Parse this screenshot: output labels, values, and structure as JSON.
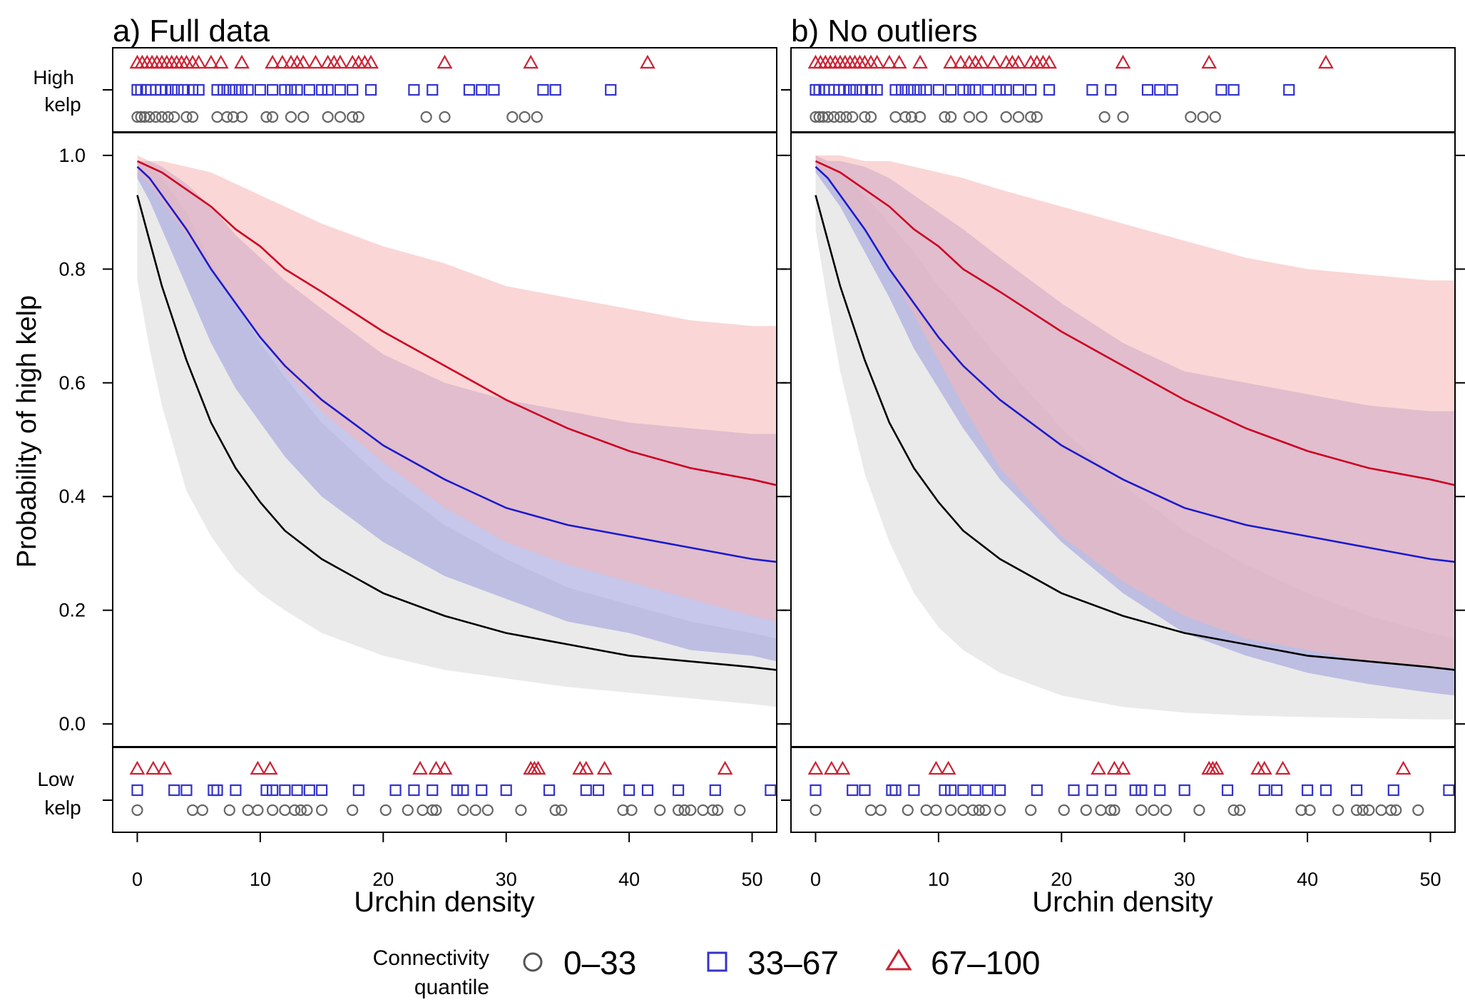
{
  "chart_data": [
    {
      "type": "line",
      "title": "a) Full data",
      "xlabel": "Urchin density",
      "ylabel": "Probability of high kelp",
      "xlim": [
        -2,
        52
      ],
      "ylim": [
        -0.04,
        1.04
      ],
      "x_ticks": [
        "0",
        "10",
        "20",
        "30",
        "40",
        "50"
      ],
      "y_ticks": [
        "0.0",
        "0.2",
        "0.4",
        "0.6",
        "0.8",
        "1.0"
      ],
      "rug_top_label": [
        "High",
        "kelp"
      ],
      "rug_bottom_label": [
        "Low",
        "kelp"
      ],
      "series": [
        {
          "name": "0–33",
          "color": "#000000",
          "fill": "#d9d9d9",
          "marker": "circle",
          "x": [
            0,
            1,
            2,
            4,
            6,
            8,
            10,
            12,
            15,
            20,
            25,
            30,
            35,
            40,
            45,
            50,
            52
          ],
          "y": [
            0.93,
            0.85,
            0.77,
            0.64,
            0.53,
            0.45,
            0.39,
            0.34,
            0.29,
            0.23,
            0.19,
            0.16,
            0.14,
            0.12,
            0.11,
            0.1,
            0.095
          ],
          "lower": [
            0.78,
            0.66,
            0.56,
            0.41,
            0.33,
            0.27,
            0.23,
            0.2,
            0.16,
            0.12,
            0.095,
            0.08,
            0.065,
            0.055,
            0.045,
            0.035,
            0.03
          ],
          "upper": [
            0.99,
            0.98,
            0.96,
            0.9,
            0.81,
            0.74,
            0.67,
            0.61,
            0.53,
            0.43,
            0.35,
            0.29,
            0.24,
            0.21,
            0.18,
            0.16,
            0.15
          ],
          "rug_high": [
            0,
            0.3,
            0.6,
            1,
            1.5,
            2,
            2.5,
            3,
            4,
            4.5,
            6.5,
            7.3,
            7.8,
            8.5,
            10.5,
            11,
            12.5,
            13.5,
            15.5,
            16.5,
            17.5,
            18,
            23.5,
            25,
            30.5,
            31.5,
            32.5
          ],
          "rug_low": [
            0,
            4.5,
            5.3,
            7.5,
            9,
            9.8,
            11,
            12,
            12.8,
            13.3,
            13.8,
            15,
            17.5,
            20.2,
            22,
            23.2,
            24,
            24.3,
            26.5,
            27.5,
            28.5,
            31.2,
            34,
            34.5,
            39.5,
            40.2,
            42.5,
            44,
            44.5,
            45,
            46,
            46.8,
            47.2,
            49
          ]
        },
        {
          "name": "33–67",
          "color": "#1a1acc",
          "fill": "#9999dd",
          "marker": "square",
          "x": [
            0,
            1,
            2,
            4,
            6,
            8,
            10,
            12,
            15,
            20,
            25,
            30,
            35,
            40,
            45,
            50,
            52
          ],
          "y": [
            0.98,
            0.96,
            0.93,
            0.87,
            0.8,
            0.74,
            0.68,
            0.63,
            0.57,
            0.49,
            0.43,
            0.38,
            0.35,
            0.33,
            0.31,
            0.29,
            0.285
          ],
          "lower": [
            0.96,
            0.92,
            0.87,
            0.77,
            0.67,
            0.59,
            0.53,
            0.47,
            0.4,
            0.32,
            0.26,
            0.22,
            0.18,
            0.16,
            0.13,
            0.12,
            0.11
          ],
          "upper": [
            0.99,
            0.99,
            0.98,
            0.95,
            0.91,
            0.86,
            0.82,
            0.78,
            0.73,
            0.65,
            0.6,
            0.57,
            0.55,
            0.53,
            0.52,
            0.51,
            0.51
          ],
          "rug_high": [
            0,
            0.3,
            0.7,
            1.1,
            1.5,
            1.9,
            2.3,
            2.8,
            3.3,
            3.8,
            4.5,
            5,
            6.5,
            7,
            7.5,
            8,
            8.5,
            9,
            10,
            11,
            12,
            12.5,
            13,
            14,
            15,
            15.5,
            16.5,
            17.5,
            19,
            22.5,
            24,
            27,
            28,
            29,
            33,
            34,
            38.5
          ],
          "rug_low": [
            0,
            3,
            4,
            6.2,
            6.5,
            8,
            10.5,
            11,
            12,
            13,
            14,
            15,
            18,
            21,
            22.5,
            24,
            26,
            26.5,
            28,
            30,
            33.5,
            36.5,
            37.5,
            40,
            41.5,
            44,
            47,
            51.5
          ]
        },
        {
          "name": "67–100",
          "color": "#cc0022",
          "fill": "#f5b5b5",
          "marker": "triangle",
          "x": [
            0,
            1,
            2,
            4,
            6,
            8,
            10,
            12,
            15,
            20,
            25,
            30,
            35,
            40,
            45,
            50,
            52
          ],
          "y": [
            0.99,
            0.98,
            0.97,
            0.94,
            0.91,
            0.87,
            0.84,
            0.8,
            0.76,
            0.69,
            0.63,
            0.57,
            0.52,
            0.48,
            0.45,
            0.43,
            0.42
          ],
          "lower": [
            0.97,
            0.95,
            0.92,
            0.86,
            0.8,
            0.74,
            0.68,
            0.62,
            0.55,
            0.46,
            0.38,
            0.32,
            0.28,
            0.25,
            0.22,
            0.19,
            0.18
          ],
          "upper": [
            1.0,
            0.99,
            0.99,
            0.98,
            0.97,
            0.95,
            0.93,
            0.91,
            0.88,
            0.84,
            0.81,
            0.77,
            0.75,
            0.73,
            0.71,
            0.7,
            0.7
          ],
          "rug_high": [
            0,
            0.4,
            0.8,
            1.2,
            1.6,
            2,
            2.4,
            2.8,
            3.2,
            3.6,
            4,
            4.5,
            5,
            6,
            6.8,
            8.5,
            11,
            11.8,
            12.5,
            13,
            13.5,
            14.5,
            15.5,
            16,
            16.5,
            17.5,
            18,
            18.5,
            19,
            25,
            32,
            41.5
          ],
          "rug_low": [
            0,
            1.3,
            2.2,
            9.8,
            10.8,
            23,
            24.3,
            25,
            32,
            32.3,
            32.6,
            36,
            36.5,
            38,
            47.8
          ]
        }
      ]
    },
    {
      "type": "line",
      "title": "b) No outliers",
      "xlabel": "Urchin density",
      "xlim": [
        -2,
        52
      ],
      "ylim": [
        -0.04,
        1.04
      ],
      "x_ticks": [
        "0",
        "10",
        "20",
        "30",
        "40",
        "50"
      ],
      "series": [
        {
          "name": "0–33",
          "color": "#000000",
          "fill": "#d9d9d9",
          "marker": "circle",
          "x": [
            0,
            1,
            2,
            4,
            6,
            8,
            10,
            12,
            15,
            20,
            25,
            30,
            35,
            40,
            45,
            50,
            52
          ],
          "y": [
            0.93,
            0.85,
            0.77,
            0.64,
            0.53,
            0.45,
            0.39,
            0.34,
            0.29,
            0.23,
            0.19,
            0.16,
            0.14,
            0.12,
            0.11,
            0.1,
            0.095
          ],
          "lower": [
            0.87,
            0.74,
            0.62,
            0.44,
            0.32,
            0.23,
            0.17,
            0.13,
            0.09,
            0.05,
            0.03,
            0.02,
            0.015,
            0.012,
            0.01,
            0.008,
            0.008
          ],
          "upper": [
            0.99,
            0.98,
            0.97,
            0.93,
            0.88,
            0.83,
            0.77,
            0.72,
            0.64,
            0.52,
            0.42,
            0.34,
            0.28,
            0.23,
            0.19,
            0.16,
            0.15
          ],
          "rug_high": [
            0,
            0.3,
            0.6,
            1,
            1.5,
            2,
            2.5,
            3,
            4,
            4.5,
            6.5,
            7.3,
            7.8,
            8.5,
            10.5,
            11,
            12.5,
            13.5,
            15.5,
            16.5,
            17.5,
            18,
            23.5,
            25,
            30.5,
            31.5,
            32.5
          ],
          "rug_low": [
            0,
            4.5,
            5.3,
            7.5,
            9,
            9.8,
            11,
            12,
            12.8,
            13.3,
            13.8,
            15,
            17.5,
            20.2,
            22,
            23.2,
            24,
            24.3,
            26.5,
            27.5,
            28.5,
            31.2,
            34,
            34.5,
            39.5,
            40.2,
            42.5,
            44,
            44.5,
            45,
            46,
            46.8,
            47.2,
            49
          ]
        },
        {
          "name": "33–67",
          "color": "#1a1acc",
          "fill": "#9999dd",
          "marker": "square",
          "x": [
            0,
            1,
            2,
            4,
            6,
            8,
            10,
            12,
            15,
            20,
            25,
            30,
            35,
            40,
            45,
            50,
            52
          ],
          "y": [
            0.98,
            0.96,
            0.93,
            0.87,
            0.8,
            0.74,
            0.68,
            0.63,
            0.57,
            0.49,
            0.43,
            0.38,
            0.35,
            0.33,
            0.31,
            0.29,
            0.285
          ],
          "lower": [
            0.97,
            0.94,
            0.91,
            0.83,
            0.75,
            0.66,
            0.59,
            0.52,
            0.43,
            0.32,
            0.23,
            0.16,
            0.12,
            0.09,
            0.07,
            0.055,
            0.05
          ],
          "upper": [
            1.0,
            0.99,
            0.99,
            0.98,
            0.96,
            0.93,
            0.9,
            0.87,
            0.82,
            0.74,
            0.67,
            0.62,
            0.6,
            0.58,
            0.56,
            0.55,
            0.55
          ],
          "rug_high": [
            0,
            0.3,
            0.7,
            1.1,
            1.5,
            1.9,
            2.3,
            2.8,
            3.3,
            3.8,
            4.5,
            5,
            6.5,
            7,
            7.5,
            8,
            8.5,
            9,
            10,
            11,
            12,
            12.5,
            13,
            14,
            15,
            15.5,
            16.5,
            17.5,
            19,
            22.5,
            24,
            27,
            28,
            29,
            33,
            34,
            38.5
          ],
          "rug_low": [
            0,
            3,
            4,
            6.2,
            6.5,
            8,
            10.5,
            11,
            12,
            13,
            14,
            15,
            18,
            21,
            22.5,
            24,
            26,
            26.5,
            28,
            30,
            33.5,
            36.5,
            37.5,
            40,
            41.5,
            44,
            47,
            51.5
          ]
        },
        {
          "name": "67–100",
          "color": "#cc0022",
          "fill": "#f5b5b5",
          "marker": "triangle",
          "x": [
            0,
            1,
            2,
            4,
            6,
            8,
            10,
            12,
            15,
            20,
            25,
            30,
            35,
            40,
            45,
            50,
            52
          ],
          "y": [
            0.99,
            0.98,
            0.97,
            0.94,
            0.91,
            0.87,
            0.84,
            0.8,
            0.76,
            0.69,
            0.63,
            0.57,
            0.52,
            0.48,
            0.45,
            0.43,
            0.42
          ],
          "lower": [
            0.98,
            0.96,
            0.93,
            0.87,
            0.8,
            0.72,
            0.64,
            0.56,
            0.45,
            0.33,
            0.25,
            0.19,
            0.15,
            0.13,
            0.11,
            0.1,
            0.1
          ],
          "upper": [
            1.0,
            1.0,
            1.0,
            0.99,
            0.99,
            0.98,
            0.97,
            0.96,
            0.94,
            0.91,
            0.88,
            0.85,
            0.82,
            0.8,
            0.79,
            0.78,
            0.78
          ],
          "rug_high": [
            0,
            0.4,
            0.8,
            1.2,
            1.6,
            2,
            2.4,
            2.8,
            3.2,
            3.6,
            4,
            4.5,
            5,
            6,
            6.8,
            8.5,
            11,
            11.8,
            12.5,
            13,
            13.5,
            14.5,
            15.5,
            16,
            16.5,
            17.5,
            18,
            18.5,
            19,
            25,
            32,
            41.5
          ],
          "rug_low": [
            0,
            1.3,
            2.2,
            9.8,
            10.8,
            23,
            24.3,
            25,
            32,
            32.3,
            32.6,
            36,
            36.5,
            38,
            47.8
          ]
        }
      ]
    }
  ],
  "legend": {
    "title_lines": [
      "Connectivity",
      "quantile"
    ],
    "items": [
      {
        "label": "0–33",
        "marker": "circle",
        "color": "#555555"
      },
      {
        "label": "33–67",
        "marker": "square",
        "color": "#3333cc"
      },
      {
        "label": "67–100",
        "marker": "triangle",
        "color": "#cc2233"
      }
    ]
  }
}
